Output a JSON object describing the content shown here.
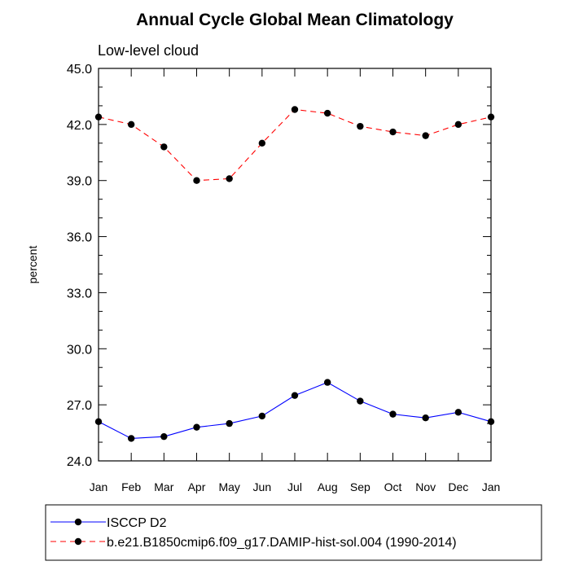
{
  "chart_data": {
    "type": "line",
    "title": "Annual Cycle Global Mean Climatology",
    "subtitle": "Low-level cloud",
    "xlabel": "",
    "ylabel": "percent",
    "categories": [
      "Jan",
      "Feb",
      "Mar",
      "Apr",
      "May",
      "Jun",
      "Jul",
      "Aug",
      "Sep",
      "Oct",
      "Nov",
      "Dec",
      "Jan"
    ],
    "ylim": [
      24.0,
      45.0
    ],
    "yticks": [
      "24.0",
      "27.0",
      "30.0",
      "33.0",
      "36.0",
      "39.0",
      "42.0",
      "45.0"
    ],
    "grid": false,
    "legend_position": "bottom",
    "series": [
      {
        "name": "ISCCP D2",
        "color": "#0000ff",
        "line_style": "solid",
        "marker": "filled-circle",
        "values": [
          26.1,
          25.2,
          25.3,
          25.8,
          26.0,
          26.4,
          27.5,
          28.2,
          27.2,
          26.5,
          26.3,
          26.6,
          26.1
        ]
      },
      {
        "name": "b.e21.B1850cmip6.f09_g17.DAMIP-hist-sol.004 (1990-2014)",
        "color": "#ff0000",
        "line_style": "dashed",
        "marker": "filled-circle",
        "values": [
          42.4,
          42.0,
          40.8,
          39.0,
          39.1,
          41.0,
          42.8,
          42.6,
          41.9,
          41.6,
          41.4,
          42.0,
          42.4
        ]
      }
    ]
  }
}
